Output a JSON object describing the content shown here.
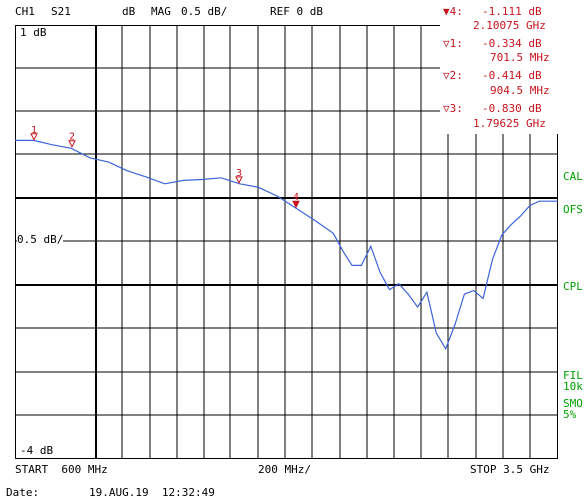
{
  "header": {
    "channel": "CH1",
    "param": "S21",
    "unit": "dB",
    "format": "MAG",
    "scale": "0.5 dB/",
    "ref": "REF 0 dB"
  },
  "scale_labels": {
    "top": "1 dB",
    "mid": "0.5 dB/",
    "bottom": "-4 dB"
  },
  "markers": [
    {
      "id": "▼4:",
      "value": "-1.111 dB",
      "freq": "2.10075 GHz"
    },
    {
      "id": "▽1:",
      "value": "-0.334 dB",
      "freq": "701.5 MHz"
    },
    {
      "id": "▽2:",
      "value": "-0.414 dB",
      "freq": "904.5 MHz"
    },
    {
      "id": "▽3:",
      "value": "-0.830 dB",
      "freq": "1.79625 GHz"
    }
  ],
  "marker_labels": [
    "1",
    "2",
    "3",
    "4"
  ],
  "side_labels": {
    "cal": "CAL",
    "ofs": "OFS",
    "cpl": "CPL",
    "fil": "FIL",
    "fil_bw": "10k",
    "smo": "SMO",
    "smo_pct": "5%"
  },
  "footer": {
    "start": "START  600 MHz",
    "span": "200 MHz/",
    "stop": "STOP 3.5 GHz",
    "date_label": "Date:",
    "date_value": "19.AUG.19  12:32:49"
  },
  "colors": {
    "trace": "#3c64dc",
    "marker": "#c8141e",
    "status": "#00a000"
  },
  "chart_data": {
    "type": "line",
    "x_unit": "GHz",
    "y_unit": "dB",
    "xlim": [
      0.6,
      3.5
    ],
    "ylim": [
      -4,
      1
    ],
    "x": [
      0.6,
      0.7,
      0.8,
      0.9,
      1.0,
      1.1,
      1.2,
      1.3,
      1.4,
      1.5,
      1.6,
      1.7,
      1.8,
      1.9,
      2.0,
      2.1,
      2.2,
      2.3,
      2.35,
      2.4,
      2.45,
      2.5,
      2.55,
      2.6,
      2.65,
      2.7,
      2.75,
      2.8,
      2.85,
      2.9,
      2.95,
      3.0,
      3.05,
      3.1,
      3.15,
      3.2,
      3.25,
      3.3,
      3.35,
      3.4,
      3.5
    ],
    "y": [
      -0.33,
      -0.33,
      -0.38,
      -0.42,
      -0.53,
      -0.58,
      -0.68,
      -0.75,
      -0.83,
      -0.79,
      -0.78,
      -0.76,
      -0.83,
      -0.87,
      -0.97,
      -1.11,
      -1.25,
      -1.4,
      -1.6,
      -1.77,
      -1.77,
      -1.55,
      -1.85,
      -2.05,
      -1.98,
      -2.1,
      -2.25,
      -2.08,
      -2.55,
      -2.73,
      -2.45,
      -2.1,
      -2.06,
      -2.15,
      -1.7,
      -1.42,
      -1.3,
      -1.2,
      -1.08,
      -1.03,
      -1.03
    ]
  }
}
